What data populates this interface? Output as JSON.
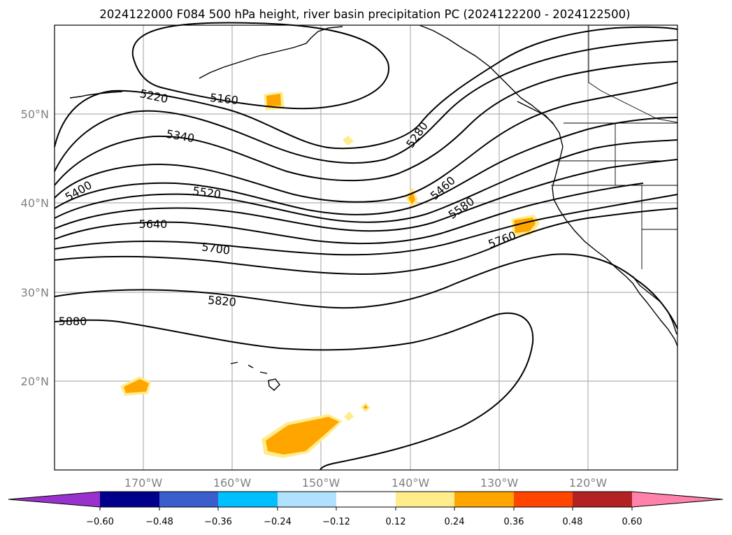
{
  "title": "2024122000 F084 500 hPa height, river basin precipitation PC (2024122200 - 2024122500)",
  "lat_labels": [
    "50°N",
    "40°N",
    "30°N",
    "20°N"
  ],
  "lon_labels": [
    "170°W",
    "160°W",
    "150°W",
    "140°W",
    "130°W",
    "120°W"
  ],
  "contour_labels": [
    "5160",
    "5220",
    "5280",
    "5340",
    "5400",
    "5460",
    "5520",
    "5580",
    "5640",
    "5700",
    "5760",
    "5820",
    "5880"
  ],
  "colorbar": {
    "ticks": [
      "−0.60",
      "−0.48",
      "−0.36",
      "−0.24",
      "−0.12",
      "0.12",
      "0.24",
      "0.36",
      "0.48",
      "0.60"
    ],
    "colors": [
      "#9932cc",
      "#00008b",
      "#3a5fcd",
      "#00bfff",
      "#b0e2ff",
      "#ffffff",
      "#ffec8b",
      "#ffa500",
      "#ff4500",
      "#b22222",
      "#ff82ab"
    ]
  },
  "colors": {
    "shade_light": "#ffec8b",
    "shade_mid": "#ffa500"
  }
}
